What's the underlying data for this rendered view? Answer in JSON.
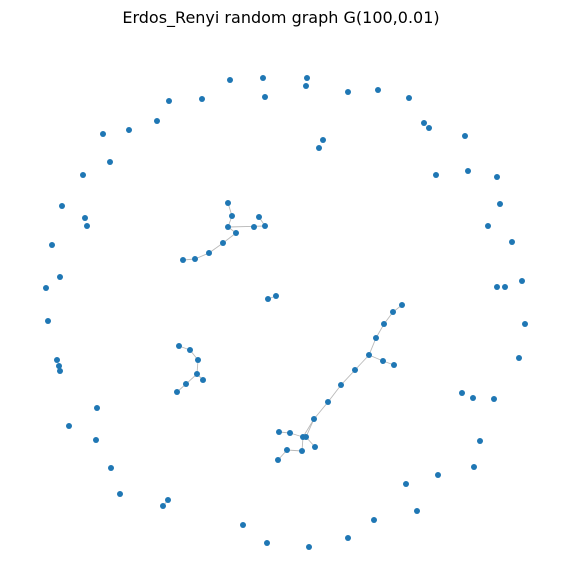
{
  "title": "Erdos_Renyi random graph G(100,0.01)",
  "node_color": "#1f77b4",
  "edge_color": "#b9b9b9",
  "background": "#ffffff",
  "graph": {
    "node_count": 100,
    "edge_probability": 0.01
  }
}
